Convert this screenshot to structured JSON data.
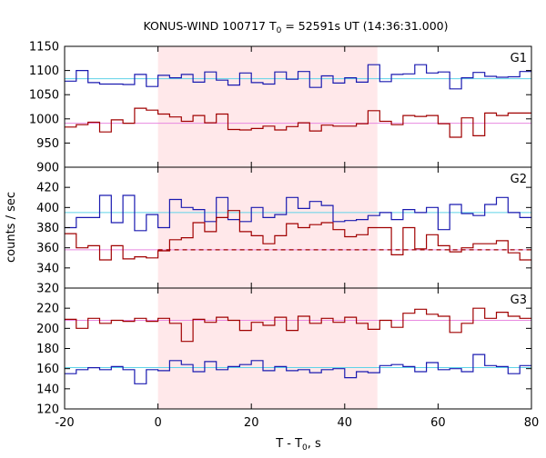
{
  "chart_data": {
    "type": "line",
    "title": {
      "main": "KONUS-WIND 100717 T",
      "sub": "0",
      "rest": " = 52591s UT (14:36:31.000)"
    },
    "xlabel": {
      "main": "T - T",
      "sub": "0",
      "rest": ", s"
    },
    "ylabel": "counts / sec",
    "xlim": [
      -20,
      80
    ],
    "x_ticks": [
      "-20",
      "0",
      "20",
      "40",
      "60",
      "80"
    ],
    "shaded_interval": {
      "x": [
        0,
        47
      ],
      "color": "#ffe8ea"
    },
    "colors": {
      "blue": "#1a1ab0",
      "red": "#a00000",
      "blue_bg": "#5fd3e8",
      "red_bg": "#e889e0"
    },
    "panels": [
      {
        "label": "G1",
        "ylim": [
          900,
          1150
        ],
        "y_ticks": [
          "1150",
          "1100",
          "1050",
          "1000",
          "950",
          "900"
        ],
        "series": [
          {
            "color": "blue",
            "bin_edges": [
              -20,
              -17.5,
              -15,
              -12.5,
              -10,
              -7.5,
              -5,
              -2.5,
              0,
              2.5,
              5,
              7.5,
              10,
              12.5,
              15,
              17.5,
              20,
              22.5,
              25,
              27.5,
              30,
              32.5,
              35,
              37.5,
              40,
              42.5,
              45,
              47.5,
              50,
              52.5,
              55,
              57.5,
              60,
              62.5,
              65,
              67.5,
              70,
              72.5,
              75,
              77.5,
              80
            ],
            "values": [
              1078,
              1100,
              1075,
              1072,
              1072,
              1071,
              1092,
              1067,
              1090,
              1085,
              1092,
              1076,
              1097,
              1080,
              1070,
              1095,
              1075,
              1072,
              1097,
              1082,
              1098,
              1065,
              1089,
              1074,
              1085,
              1076,
              1112,
              1077,
              1092,
              1093,
              1112,
              1095,
              1097,
              1062,
              1085,
              1096,
              1088,
              1086,
              1087,
              1098
            ],
            "background": 1083
          },
          {
            "color": "red",
            "bin_edges": [
              -20,
              -17.5,
              -15,
              -12.5,
              -10,
              -7.5,
              -5,
              -2.5,
              0,
              2.5,
              5,
              7.5,
              10,
              12.5,
              15,
              17.5,
              20,
              22.5,
              25,
              27.5,
              30,
              32.5,
              35,
              37.5,
              40,
              42.5,
              45,
              47.5,
              50,
              52.5,
              55,
              57.5,
              60,
              62.5,
              65,
              67.5,
              70,
              72.5,
              75,
              77.5,
              80
            ],
            "values": [
              983,
              988,
              993,
              973,
              998,
              991,
              1022,
              1018,
              1010,
              1004,
              995,
              1007,
              992,
              1010,
              978,
              977,
              980,
              985,
              977,
              984,
              992,
              975,
              987,
              985,
              985,
              990,
              1017,
              995,
              988,
              1007,
              1005,
              1007,
              990,
              962,
              1002,
              965,
              1012,
              1007,
              1012,
              1012
            ],
            "background": 991
          }
        ]
      },
      {
        "label": "G2",
        "ylim": [
          320,
          440
        ],
        "y_ticks": [
          "420",
          "400",
          "380",
          "360",
          "340",
          "320"
        ],
        "series": [
          {
            "color": "blue",
            "bin_edges": [
              -20,
              -17.5,
              -15,
              -12.5,
              -10,
              -7.5,
              -5,
              -2.5,
              0,
              2.5,
              5,
              7.5,
              10,
              12.5,
              15,
              17.5,
              20,
              22.5,
              25,
              27.5,
              30,
              32.5,
              35,
              37.5,
              40,
              42.5,
              45,
              47.5,
              50,
              52.5,
              55,
              57.5,
              60,
              62.5,
              65,
              67.5,
              70,
              72.5,
              75,
              77.5,
              80
            ],
            "values": [
              380,
              390,
              390,
              412,
              385,
              412,
              377,
              393,
              380,
              408,
              400,
              398,
              386,
              410,
              388,
              386,
              400,
              390,
              393,
              410,
              399,
              406,
              402,
              386,
              387,
              388,
              392,
              395,
              388,
              398,
              395,
              400,
              378,
              403,
              394,
              392,
              403,
              410,
              395,
              390
            ],
            "background": 395
          },
          {
            "color": "red",
            "bin_edges": [
              -20,
              -17.5,
              -15,
              -12.5,
              -10,
              -7.5,
              -5,
              -2.5,
              0,
              2.5,
              5,
              7.5,
              10,
              12.5,
              15,
              17.5,
              20,
              22.5,
              25,
              27.5,
              30,
              32.5,
              35,
              37.5,
              40,
              42.5,
              45,
              47.5,
              50,
              52.5,
              55,
              57.5,
              60,
              62.5,
              65,
              67.5,
              70,
              72.5,
              75,
              77.5,
              80
            ],
            "values": [
              374,
              360,
              362,
              348,
              362,
              349,
              351,
              350,
              357,
              368,
              370,
              385,
              376,
              390,
              397,
              376,
              372,
              364,
              372,
              384,
              380,
              383,
              385,
              378,
              371,
              373,
              380,
              380,
              353,
              380,
              359,
              373,
              362,
              356,
              360,
              364,
              364,
              367,
              355,
              348
            ],
            "background": 358,
            "dashed_interval": [
              0,
              80
            ]
          }
        ]
      },
      {
        "label": "G3",
        "ylim": [
          120,
          240
        ],
        "y_ticks": [
          "220",
          "200",
          "180",
          "160",
          "140",
          "120"
        ],
        "series": [
          {
            "color": "red",
            "bin_edges": [
              -20,
              -17.5,
              -15,
              -12.5,
              -10,
              -7.5,
              -5,
              -2.5,
              0,
              2.5,
              5,
              7.5,
              10,
              12.5,
              15,
              17.5,
              20,
              22.5,
              25,
              27.5,
              30,
              32.5,
              35,
              37.5,
              40,
              42.5,
              45,
              47.5,
              50,
              52.5,
              55,
              57.5,
              60,
              62.5,
              65,
              67.5,
              70,
              72.5,
              75,
              77.5,
              80
            ],
            "values": [
              209,
              200,
              210,
              205,
              208,
              207,
              210,
              207,
              210,
              205,
              187,
              209,
              206,
              211,
              208,
              198,
              206,
              203,
              211,
              198,
              212,
              205,
              210,
              206,
              211,
              205,
              199,
              208,
              201,
              215,
              219,
              214,
              212,
              196,
              205,
              220,
              210,
              216,
              212,
              210
            ],
            "background": 208
          },
          {
            "color": "blue",
            "bin_edges": [
              -20,
              -17.5,
              -15,
              -12.5,
              -10,
              -7.5,
              -5,
              -2.5,
              0,
              2.5,
              5,
              7.5,
              10,
              12.5,
              15,
              17.5,
              20,
              22.5,
              25,
              27.5,
              30,
              32.5,
              35,
              37.5,
              40,
              42.5,
              45,
              47.5,
              50,
              52.5,
              55,
              57.5,
              60,
              62.5,
              65,
              67.5,
              70,
              72.5,
              75,
              77.5,
              80
            ],
            "values": [
              155,
              159,
              161,
              159,
              162,
              159,
              145,
              159,
              158,
              168,
              164,
              157,
              167,
              159,
              162,
              164,
              168,
              158,
              162,
              158,
              159,
              156,
              159,
              160,
              151,
              157,
              156,
              163,
              164,
              162,
              157,
              166,
              159,
              160,
              157,
              174,
              163,
              162,
              155,
              163
            ],
            "background": 161
          }
        ]
      }
    ]
  }
}
